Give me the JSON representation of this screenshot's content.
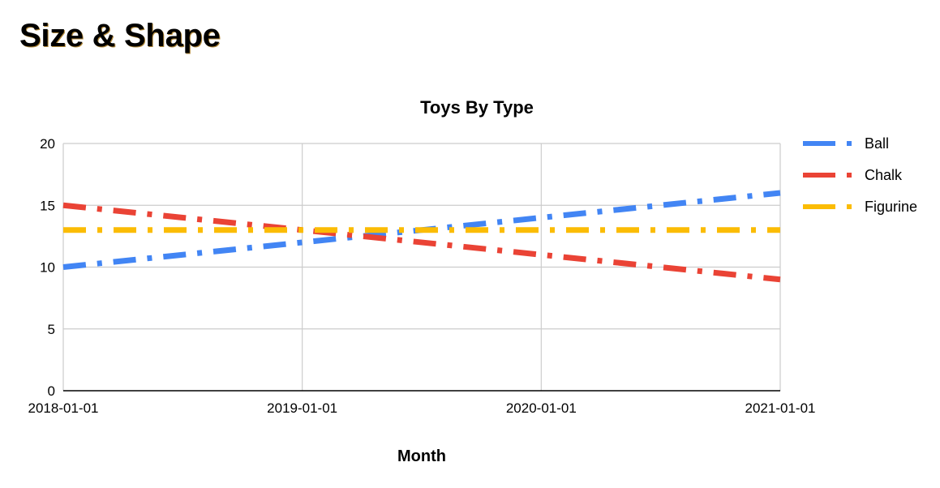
{
  "page": {
    "heading": "Size & Shape"
  },
  "colors": {
    "ball": "#4285f4",
    "chalk": "#ea4335",
    "figurine": "#fbbc04",
    "grid": "#cccccc",
    "axis": "#000000",
    "text": "#000000"
  },
  "chart_data": {
    "type": "line",
    "title": "Toys By Type",
    "xlabel": "Month",
    "ylabel": "",
    "x": [
      "2018-01-01",
      "2019-01-01",
      "2020-01-01",
      "2021-01-01"
    ],
    "xticks": [
      "2018-01-01",
      "2019-01-01",
      "2020-01-01",
      "2021-01-01"
    ],
    "ylim": [
      0,
      20
    ],
    "yticks": [
      "0",
      "5",
      "10",
      "15",
      "20"
    ],
    "grid": true,
    "legend_position": "right",
    "line_style": "dash-dot",
    "series": [
      {
        "name": "Ball",
        "key": "ball",
        "values": [
          10,
          12,
          14,
          16
        ]
      },
      {
        "name": "Chalk",
        "key": "chalk",
        "values": [
          15,
          13,
          11,
          9
        ]
      },
      {
        "name": "Figurine",
        "key": "figurine",
        "values": [
          13,
          13,
          13,
          13
        ]
      }
    ]
  }
}
